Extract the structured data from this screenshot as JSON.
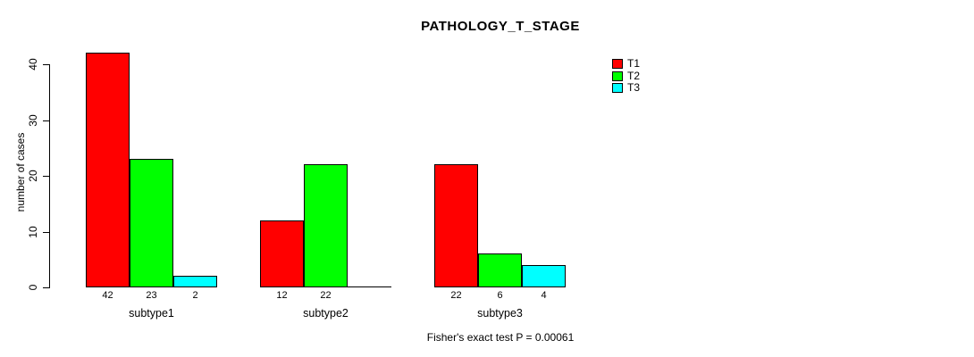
{
  "title": "PATHOLOGY_T_STAGE",
  "chart_data": {
    "type": "bar",
    "categories": [
      "subtype1",
      "subtype2",
      "subtype3"
    ],
    "series": [
      {
        "name": "T1",
        "color": "#ff0000",
        "values": [
          42,
          12,
          22
        ]
      },
      {
        "name": "T2",
        "color": "#00ff00",
        "values": [
          23,
          22,
          6
        ]
      },
      {
        "name": "T3",
        "color": "#00ffff",
        "values": [
          2,
          0,
          4
        ]
      }
    ],
    "title": "PATHOLOGY_T_STAGE",
    "xlabel": "",
    "ylabel": "number of cases",
    "ylim": [
      0,
      40
    ],
    "yticks": [
      0,
      10,
      20,
      30,
      40
    ],
    "grid": false,
    "legend_position": "top-right",
    "bar_border_color": "#000000",
    "value_labels_shown_for_nonzero_bars": true,
    "annotation": "Fisher's exact test P = 0.00061"
  }
}
